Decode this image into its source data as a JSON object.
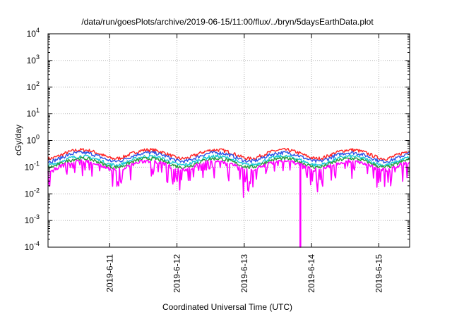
{
  "chart_data": {
    "type": "line",
    "title": "/data/run/goesPlots/archive/2019-06-15/11:00/flux/../bryn/5daysEarthData.plot",
    "xlabel": "Coordinated Universal Time (UTC)",
    "ylabel": "cGy/day",
    "yscale": "log",
    "ylim": [
      0.0001,
      10000
    ],
    "y_ticks": [
      {
        "value": 0.0001,
        "base": "10",
        "exp": "-4"
      },
      {
        "value": 0.001,
        "base": "10",
        "exp": "-3"
      },
      {
        "value": 0.01,
        "base": "10",
        "exp": "-2"
      },
      {
        "value": 0.1,
        "base": "10",
        "exp": "-1"
      },
      {
        "value": 1,
        "base": "10",
        "exp": "0"
      },
      {
        "value": 10,
        "base": "10",
        "exp": "1"
      },
      {
        "value": 100,
        "base": "10",
        "exp": "2"
      },
      {
        "value": 1000,
        "base": "10",
        "exp": "3"
      },
      {
        "value": 10000,
        "base": "10",
        "exp": "4"
      }
    ],
    "xlim": [
      "2019-06-10T02:00",
      "2019-06-15T11:00"
    ],
    "x_ticks": [
      {
        "value": "2019-06-11T00:00",
        "label": "2019-6-11"
      },
      {
        "value": "2019-06-12T00:00",
        "label": "2019-6-12"
      },
      {
        "value": "2019-06-13T00:00",
        "label": "2019-6-13"
      },
      {
        "value": "2019-06-14T00:00",
        "label": "2019-6-14"
      },
      {
        "value": "2019-06-15T00:00",
        "label": "2019-6-15"
      }
    ],
    "grid": true,
    "legend": "none",
    "series": [
      {
        "color": "#ff2020",
        "level": 0.42
      },
      {
        "color": "#2a52e8",
        "level": 0.33
      },
      {
        "color": "#17c9d6",
        "level": 0.24
      },
      {
        "color": "#2a9a3a",
        "level": 0.2
      },
      {
        "color": "#ff00ff",
        "level": 0.16
      }
    ],
    "features": {
      "dip_at": "2019-06-13T20:00",
      "dip_value": 0.0001
    }
  }
}
